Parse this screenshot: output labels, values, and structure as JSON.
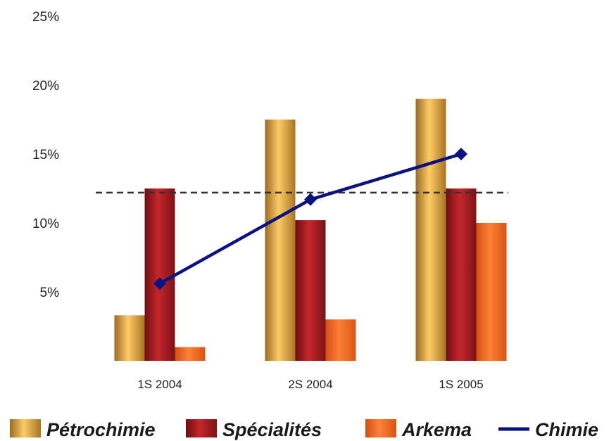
{
  "chart_data": {
    "type": "bar",
    "categories": [
      "1S 2004",
      "2S 2004",
      "1S 2005"
    ],
    "series": [
      {
        "name": "Pétrochimie",
        "type": "bar",
        "values": [
          3.3,
          17.5,
          19.0
        ],
        "color": "#E3A83F"
      },
      {
        "name": "Spécialités",
        "type": "bar",
        "values": [
          12.5,
          10.2,
          12.5
        ],
        "color": "#A51E22"
      },
      {
        "name": "Arkema",
        "type": "bar",
        "values": [
          1.0,
          3.0,
          10.0
        ],
        "color": "#F26A1F"
      },
      {
        "name": "Chimie",
        "type": "line",
        "values": [
          5.6,
          11.7,
          15.0
        ],
        "color": "#0A137F"
      }
    ],
    "reference_line": {
      "value": 12.2,
      "style": "dashed",
      "color": "#333333"
    },
    "y_ticks": [
      {
        "value": 5,
        "label": "5%"
      },
      {
        "value": 10,
        "label": "10%"
      },
      {
        "value": 15,
        "label": "15%"
      },
      {
        "value": 20,
        "label": "20%"
      },
      {
        "value": 25,
        "label": "25%"
      }
    ],
    "ylim": [
      0,
      25
    ],
    "title": "",
    "xlabel": "",
    "ylabel": "",
    "grid": false,
    "legend_position": "bottom"
  }
}
